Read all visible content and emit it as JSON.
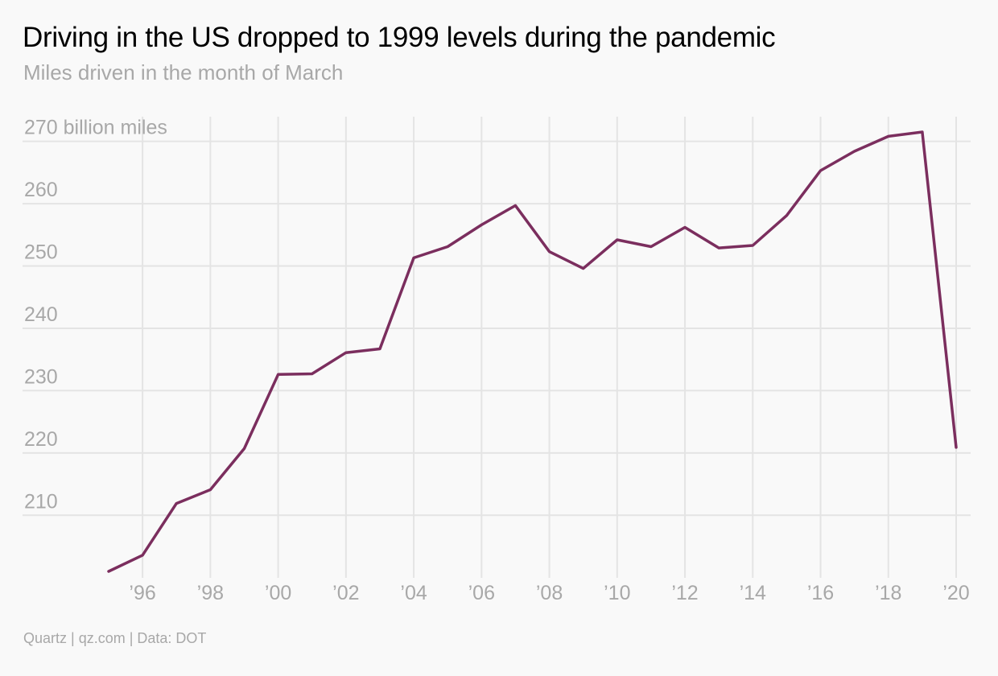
{
  "title": "Driving in the US dropped to 1999 levels during the pandemic",
  "subtitle": "Miles driven in the month of March",
  "footer": "Quartz | qz.com | Data: DOT",
  "colors": {
    "line": "#7b2e5e",
    "grid": "#e4e4e4",
    "tick_text": "#a8a8a8",
    "background": "#f9f9f9"
  },
  "chart_data": {
    "type": "line",
    "title": "Driving in the US dropped to 1999 levels during the pandemic",
    "subtitle": "Miles driven in the month of March",
    "x": [
      1995,
      1996,
      1997,
      1998,
      1999,
      2000,
      2001,
      2002,
      2003,
      2004,
      2005,
      2006,
      2007,
      2008,
      2009,
      2010,
      2011,
      2012,
      2013,
      2014,
      2015,
      2016,
      2017,
      2018,
      2019,
      2020
    ],
    "series": [
      {
        "values": [
          201.0,
          203.6,
          211.9,
          214.1,
          220.7,
          232.6,
          232.7,
          236.1,
          236.7,
          251.3,
          253.1,
          256.6,
          259.7,
          252.3,
          249.6,
          254.2,
          253.1,
          256.2,
          252.9,
          253.3,
          258.1,
          265.3,
          268.4,
          270.8,
          271.5,
          220.9
        ]
      }
    ],
    "xlim": [
      1995,
      2020
    ],
    "ylim": [
      201,
      271.5
    ],
    "x_ticks": [
      1996,
      1998,
      2000,
      2002,
      2004,
      2006,
      2008,
      2010,
      2012,
      2014,
      2016,
      2018,
      2020
    ],
    "x_tick_labels": [
      "’96",
      "’98",
      "’00",
      "’02",
      "’04",
      "’06",
      "’08",
      "’10",
      "’12",
      "’14",
      "’16",
      "’18",
      "’20"
    ],
    "y_ticks": [
      210,
      220,
      230,
      240,
      250,
      260,
      270
    ],
    "y_tick_labels": [
      "210",
      "220",
      "230",
      "240",
      "250",
      "260",
      "270 billion miles"
    ],
    "grid": true,
    "legend": "none"
  }
}
